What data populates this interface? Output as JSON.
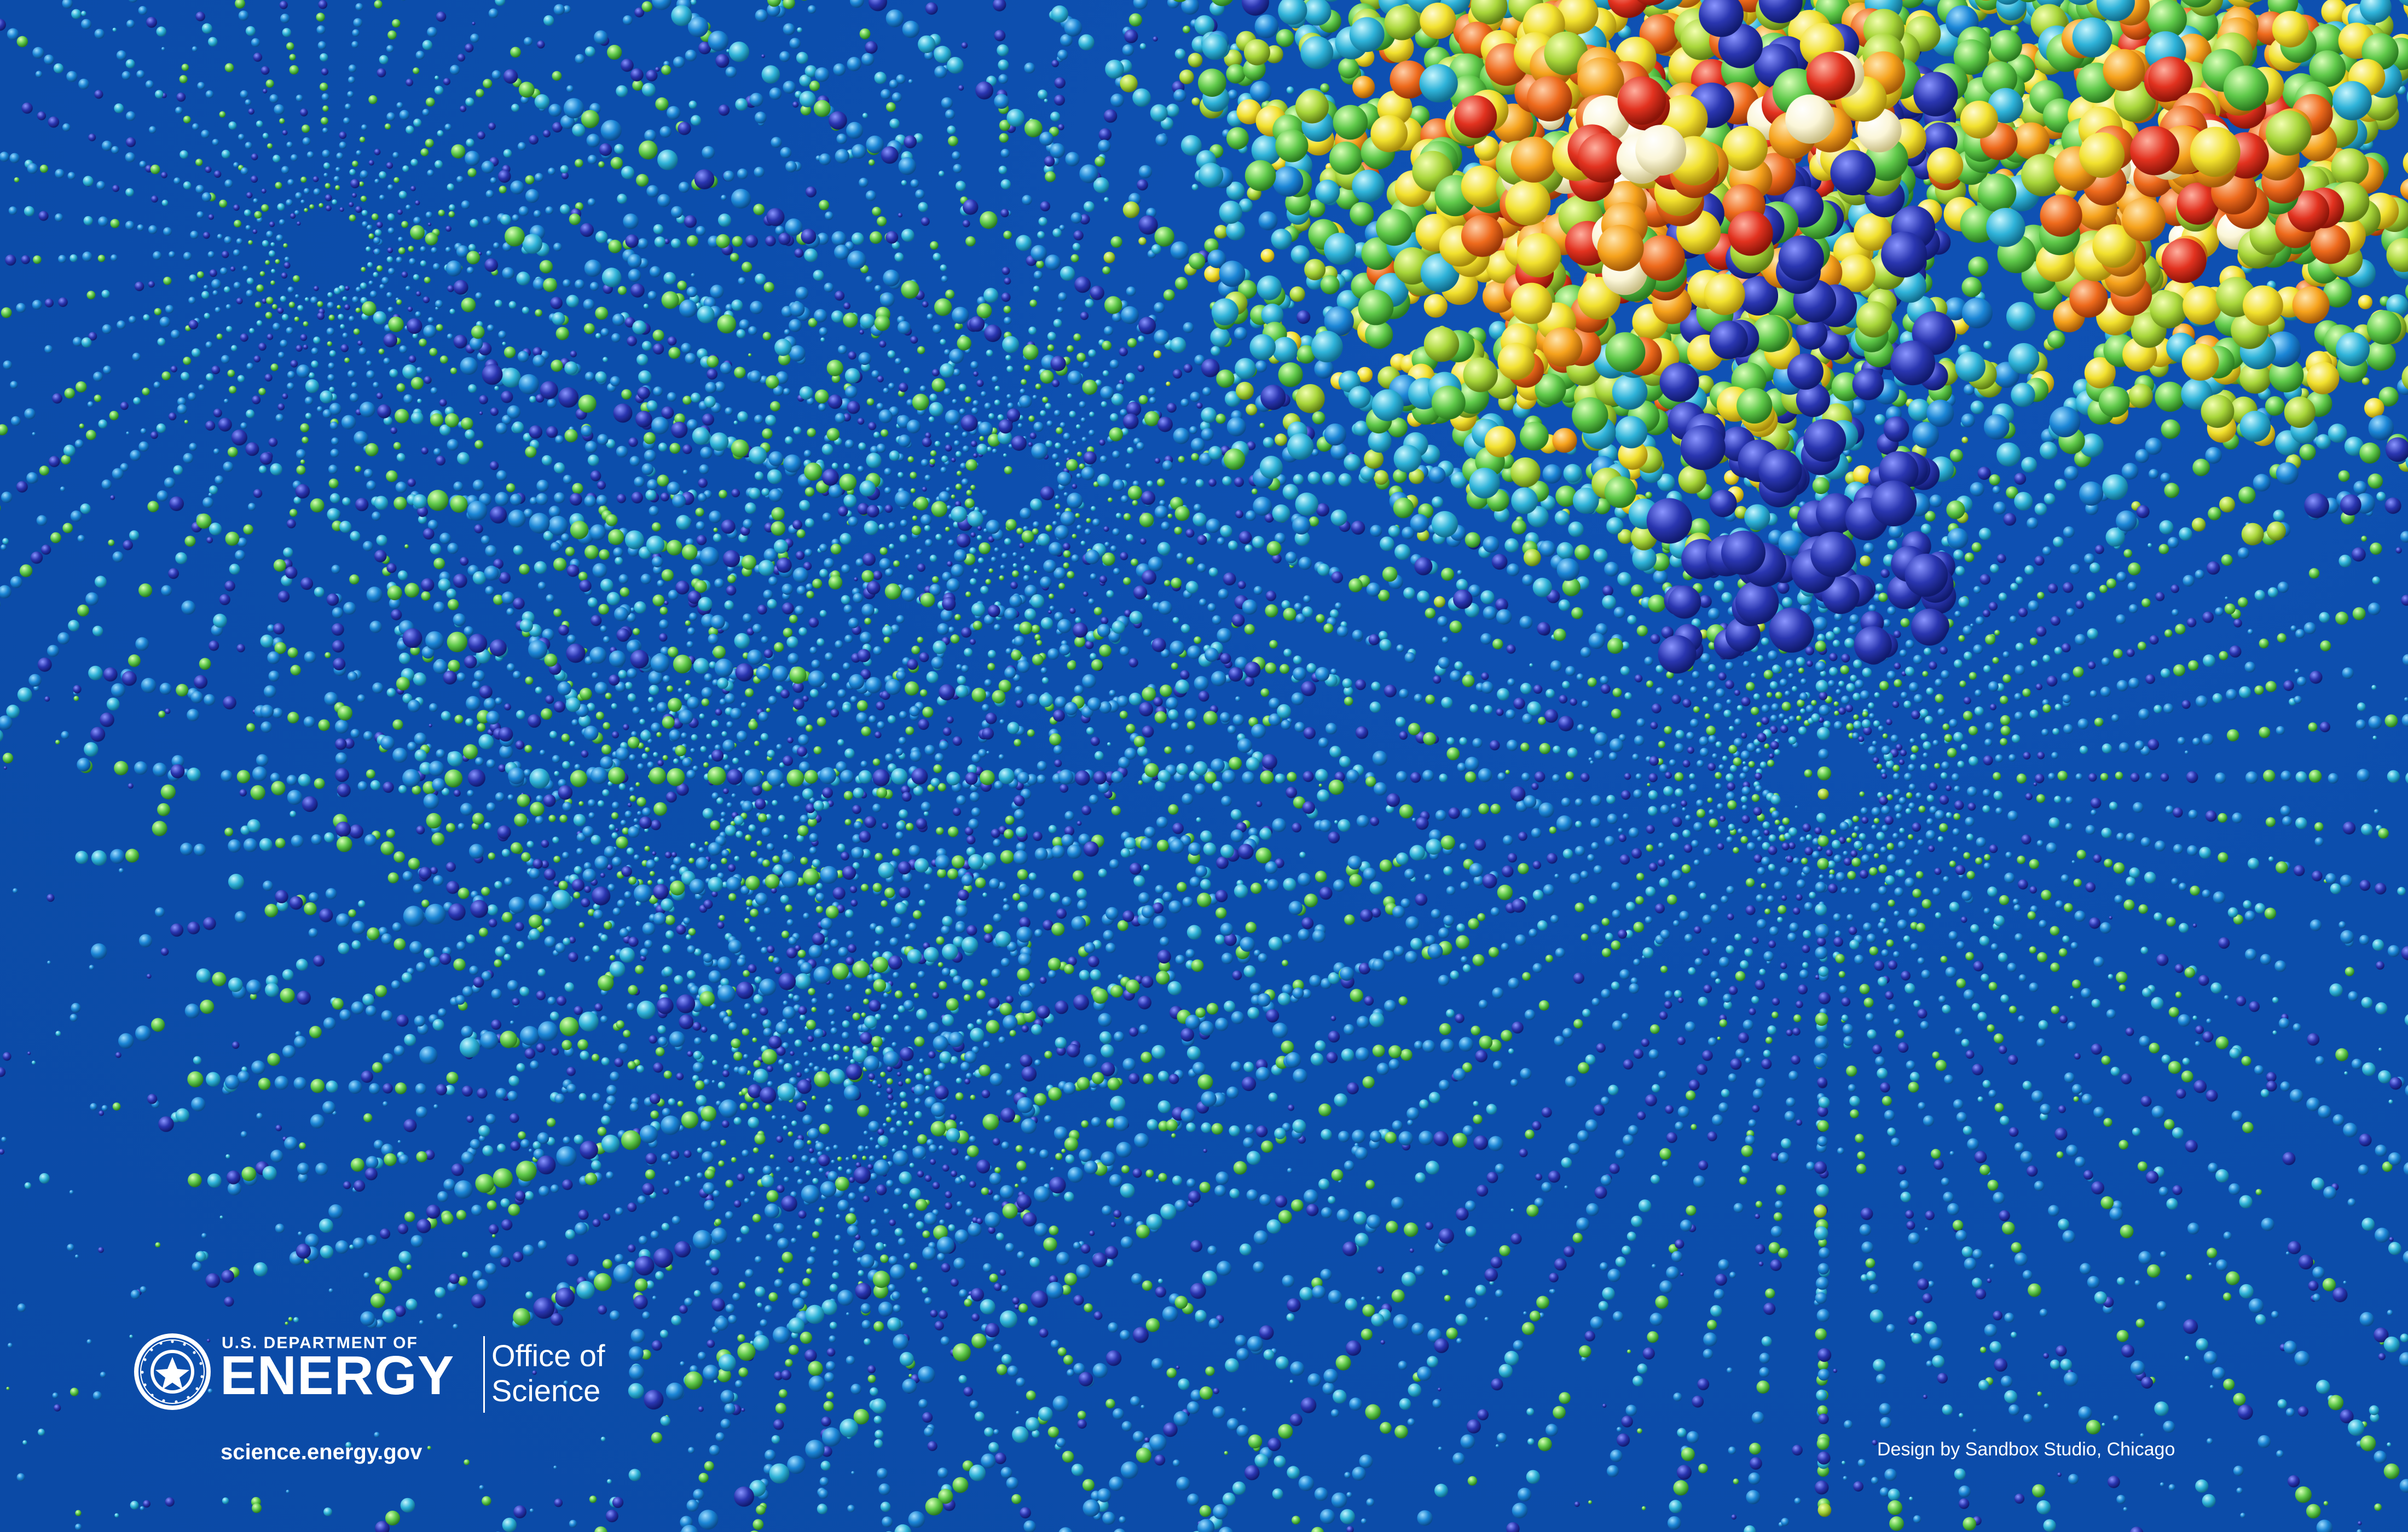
{
  "branding": {
    "department": "U.S. DEPARTMENT OF",
    "agency": "ENERGY",
    "office_line1": "Office of",
    "office_line2": "Science",
    "website": "science.energy.gov"
  },
  "credit": "Design by Sandbox Studio, Chicago",
  "colors": {
    "background": "#0c4fad",
    "text": "#ffffff",
    "sphere_palette": [
      "#1f2a9c",
      "#1b86d6",
      "#2fb3d9",
      "#5fc94a",
      "#a8d63a",
      "#f2e12e",
      "#f6a21c",
      "#ee6a1c",
      "#e2321f",
      "#fbf6d8"
    ]
  },
  "icons": {
    "seal": "doe-seal-icon"
  }
}
